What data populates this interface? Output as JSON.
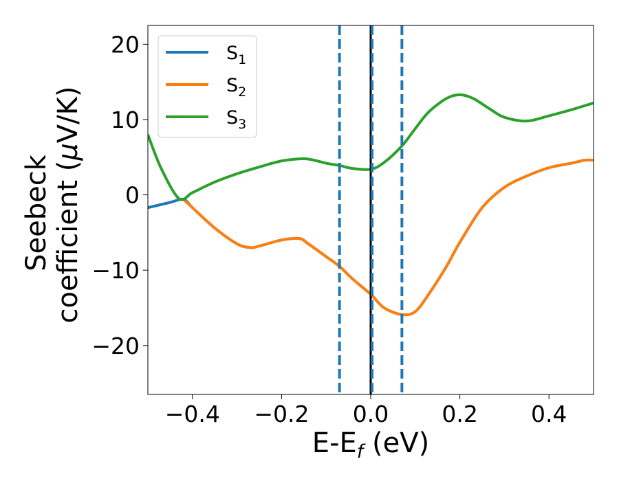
{
  "chart_data": {
    "type": "line",
    "xlabel": "E-E",
    "xlabel_sub": "f",
    "xlabel_unit": " (eV)",
    "ylabel_line1": "Seebeck",
    "ylabel_line2_prefix": "coefficient  (",
    "ylabel_mu": "μ",
    "ylabel_line2_suffix": "V/K)",
    "xlim": [
      -0.5,
      0.5
    ],
    "ylim": [
      -26.5,
      22.5
    ],
    "x_ticks": [
      -0.4,
      -0.2,
      0.0,
      0.2,
      0.4
    ],
    "x_tick_labels": [
      "−0.4",
      "−0.2",
      "0.0",
      "0.2",
      "0.4"
    ],
    "y_ticks": [
      -20,
      -10,
      0,
      10,
      20
    ],
    "y_tick_labels": [
      "−20",
      "−10",
      "0",
      "10",
      "20"
    ],
    "legend_position": "upper-left",
    "vlines": [
      {
        "x": -0.07,
        "style": "dashed",
        "color": "#1f77b4"
      },
      {
        "x": 0.0,
        "style": "solid",
        "color": "#000000"
      },
      {
        "x": 0.003,
        "style": "dashed",
        "color": "#1f77b4"
      },
      {
        "x": 0.07,
        "style": "dashed",
        "color": "#1f77b4"
      }
    ],
    "series": [
      {
        "name": "S",
        "sub": "1",
        "color": "#1f77b4",
        "x": [
          -0.5,
          -0.45,
          -0.42,
          -0.4,
          -0.35,
          -0.3,
          -0.27,
          -0.25,
          -0.2,
          -0.16,
          -0.14,
          -0.1,
          -0.07,
          -0.04,
          0.0,
          0.03,
          0.07,
          0.1,
          0.13,
          0.17,
          0.2,
          0.25,
          0.3,
          0.35,
          0.4,
          0.45,
          0.48,
          0.5
        ],
        "y": [
          -1.7,
          -1.0,
          -0.6,
          -1.7,
          -4.4,
          -6.5,
          -7.0,
          -6.8,
          -6.0,
          -5.8,
          -6.5,
          -8.2,
          -9.5,
          -11.2,
          -13.2,
          -15.0,
          -15.9,
          -15.5,
          -13.2,
          -9.5,
          -6.3,
          -1.7,
          1.0,
          2.5,
          3.6,
          4.2,
          4.6,
          4.6
        ]
      },
      {
        "name": "S",
        "sub": "2",
        "color": "#ff7f0e",
        "x": [
          -0.42,
          -0.4,
          -0.35,
          -0.3,
          -0.27,
          -0.25,
          -0.2,
          -0.16,
          -0.14,
          -0.1,
          -0.07,
          -0.04,
          0.0,
          0.03,
          0.07,
          0.1,
          0.13,
          0.17,
          0.2,
          0.25,
          0.3,
          0.35,
          0.4,
          0.45,
          0.48,
          0.5
        ],
        "y": [
          -0.6,
          -1.7,
          -4.4,
          -6.5,
          -7.0,
          -6.8,
          -6.0,
          -5.8,
          -6.5,
          -8.2,
          -9.5,
          -11.2,
          -13.2,
          -15.0,
          -15.9,
          -15.5,
          -13.2,
          -9.5,
          -6.3,
          -1.7,
          1.0,
          2.5,
          3.6,
          4.2,
          4.6,
          4.6
        ]
      },
      {
        "name": "S",
        "sub": "3",
        "color": "#2ca02c",
        "x": [
          -0.5,
          -0.47,
          -0.43,
          -0.4,
          -0.35,
          -0.3,
          -0.25,
          -0.2,
          -0.15,
          -0.12,
          -0.1,
          -0.07,
          -0.04,
          0.0,
          0.03,
          0.07,
          0.1,
          0.13,
          0.17,
          0.2,
          0.23,
          0.27,
          0.3,
          0.35,
          0.4,
          0.45,
          0.5
        ],
        "y": [
          8.0,
          3.5,
          -0.5,
          0.3,
          1.7,
          2.8,
          3.7,
          4.5,
          4.8,
          4.5,
          4.2,
          3.9,
          3.5,
          3.4,
          4.3,
          6.5,
          8.8,
          11.0,
          12.8,
          13.3,
          12.8,
          11.3,
          10.3,
          9.8,
          10.5,
          11.3,
          12.2
        ]
      }
    ]
  }
}
